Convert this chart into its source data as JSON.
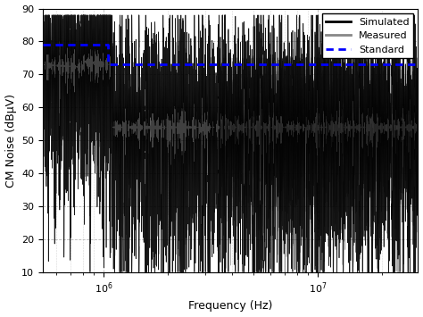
{
  "title": "",
  "xlabel": "Frequency (Hz)",
  "ylabel": "CM Noise (dBµV)",
  "xlim_log": [
    520000.0,
    29500000.0
  ],
  "ylim": [
    10,
    90
  ],
  "yticks": [
    10,
    20,
    30,
    40,
    50,
    60,
    70,
    80,
    90
  ],
  "standard_step_freq": 1050000.0,
  "standard_level_low": 79,
  "standard_level_high": 73,
  "simulated_color": "#000000",
  "measured_color": "#888888",
  "standard_color": "#0000FF",
  "background_color": "#ffffff",
  "grid_color": "#999999",
  "legend_labels": [
    "Simulated",
    "Measured",
    "Standard"
  ],
  "fig_width": 4.74,
  "fig_height": 3.55,
  "dpi": 100
}
